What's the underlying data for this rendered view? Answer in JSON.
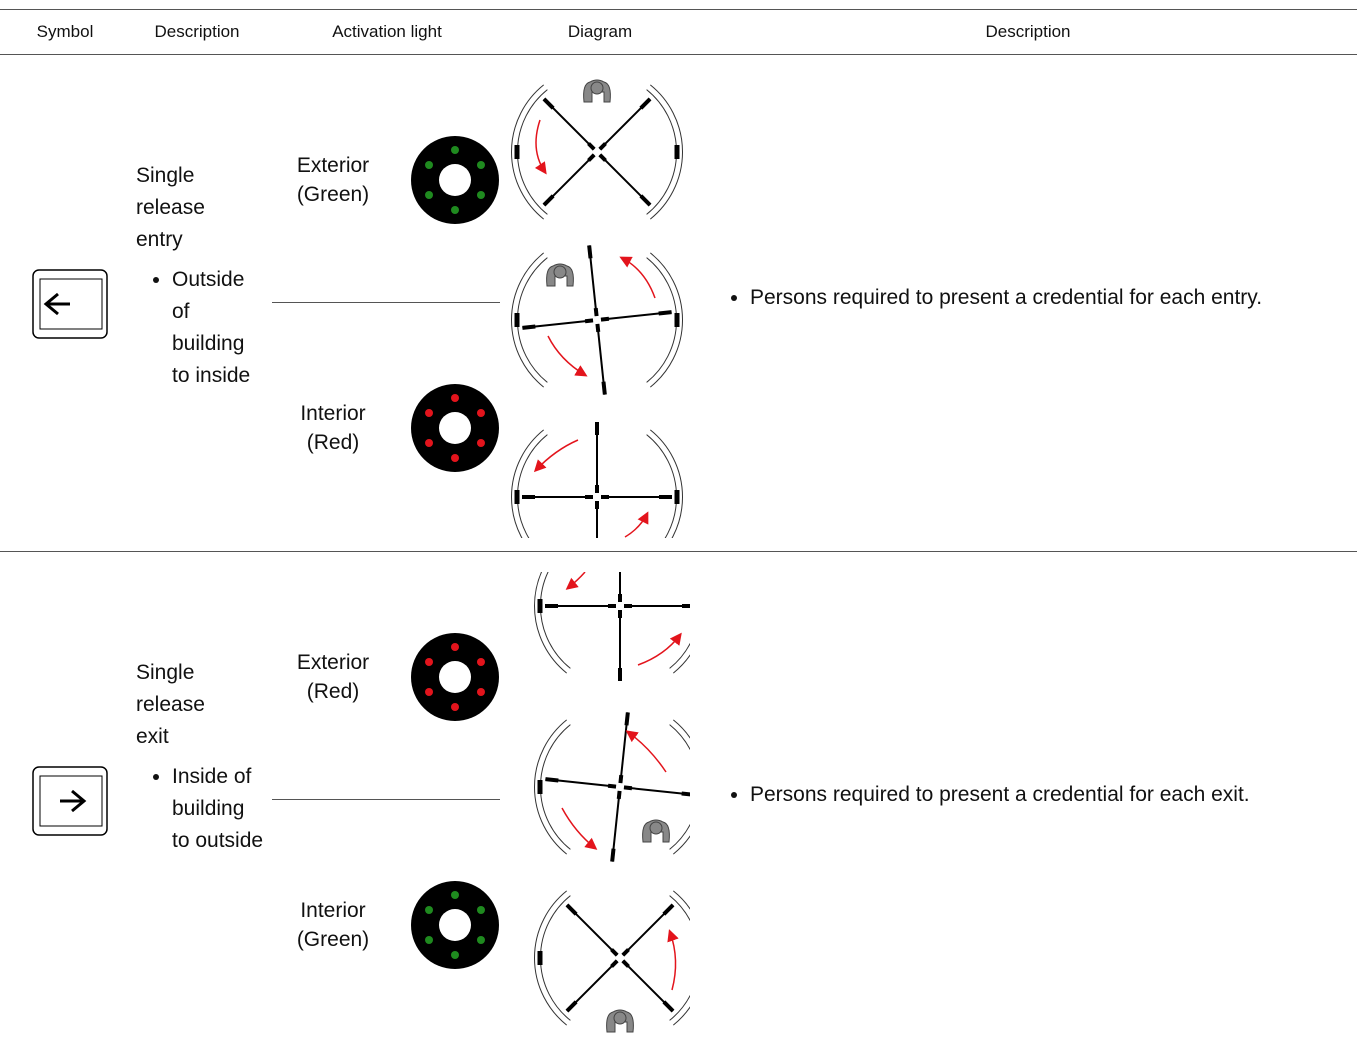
{
  "header": {
    "columns": [
      "Symbol",
      "Description",
      "Activation light",
      "Diagram",
      "Description"
    ]
  },
  "rows": [
    {
      "title": "Single release entry",
      "bullet": "Outside of building to inside",
      "lights": [
        {
          "label": "Exterior (Green)",
          "dot_color": "#1f8a1f"
        },
        {
          "label": "Interior (Red)",
          "dot_color": "#e3141c"
        }
      ],
      "description": "Persons required to present a credential for each entry."
    },
    {
      "title": "Single release exit",
      "bullet": "Inside of building to outside",
      "lights": [
        {
          "label": "Exterior (Red)",
          "dot_color": "#e3141c"
        },
        {
          "label": "Interior (Green)",
          "dot_color": "#1f8a1f"
        }
      ],
      "description": "Persons required to present a credential for each exit."
    }
  ]
}
